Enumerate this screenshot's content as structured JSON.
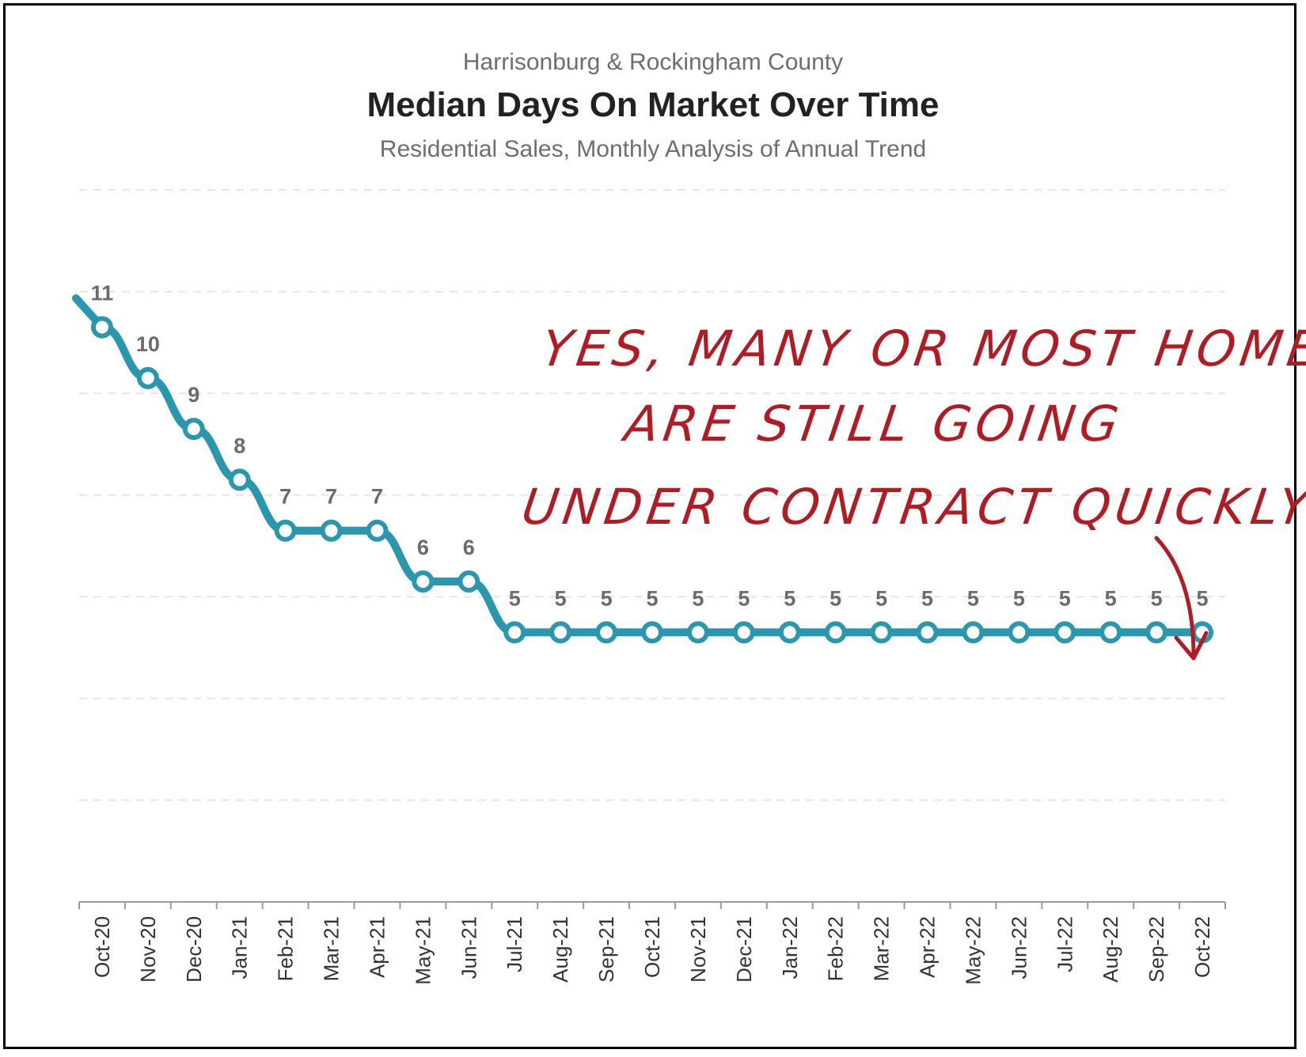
{
  "header": {
    "supertitle": "Harrisonburg & Rockingham County",
    "title": "Median Days On Market Over Time",
    "subtitle": "Residential Sales, Monthly Analysis of Annual Trend"
  },
  "annotation": {
    "line1": "YES, MANY OR MOST HOMES",
    "line2": "ARE STILL GOING",
    "line3": "UNDER CONTRACT QUICKLY",
    "color": "#b01c24"
  },
  "chart_data": {
    "type": "line",
    "title": "Median Days On Market Over Time",
    "xlabel": "",
    "ylabel": "",
    "grid": true,
    "legend": "none",
    "ylim": [
      0,
      14
    ],
    "line_color": "#2a97ae",
    "categories": [
      "Oct-20",
      "Nov-20",
      "Dec-20",
      "Jan-21",
      "Feb-21",
      "Mar-21",
      "Apr-21",
      "May-21",
      "Jun-21",
      "Jul-21",
      "Aug-21",
      "Sep-21",
      "Oct-21",
      "Nov-21",
      "Dec-21",
      "Jan-22",
      "Feb-22",
      "Mar-22",
      "Apr-22",
      "May-22",
      "Jun-22",
      "Jul-22",
      "Aug-22",
      "Sep-22",
      "Oct-22"
    ],
    "values": [
      11.3,
      10.3,
      9.3,
      8.3,
      7.3,
      7.3,
      7.3,
      6.3,
      6.3,
      5.3,
      5.3,
      5.3,
      5.3,
      5.3,
      5.3,
      5.3,
      5.3,
      5.3,
      5.3,
      5.3,
      5.3,
      5.3,
      5.3,
      5.3,
      5.3
    ],
    "data_labels": [
      "11",
      "10",
      "9",
      "8",
      "7",
      "7",
      "7",
      "6",
      "6",
      "5",
      "5",
      "5",
      "5",
      "5",
      "5",
      "5",
      "5",
      "5",
      "5",
      "5",
      "5",
      "5",
      "5",
      "5",
      "5"
    ]
  }
}
